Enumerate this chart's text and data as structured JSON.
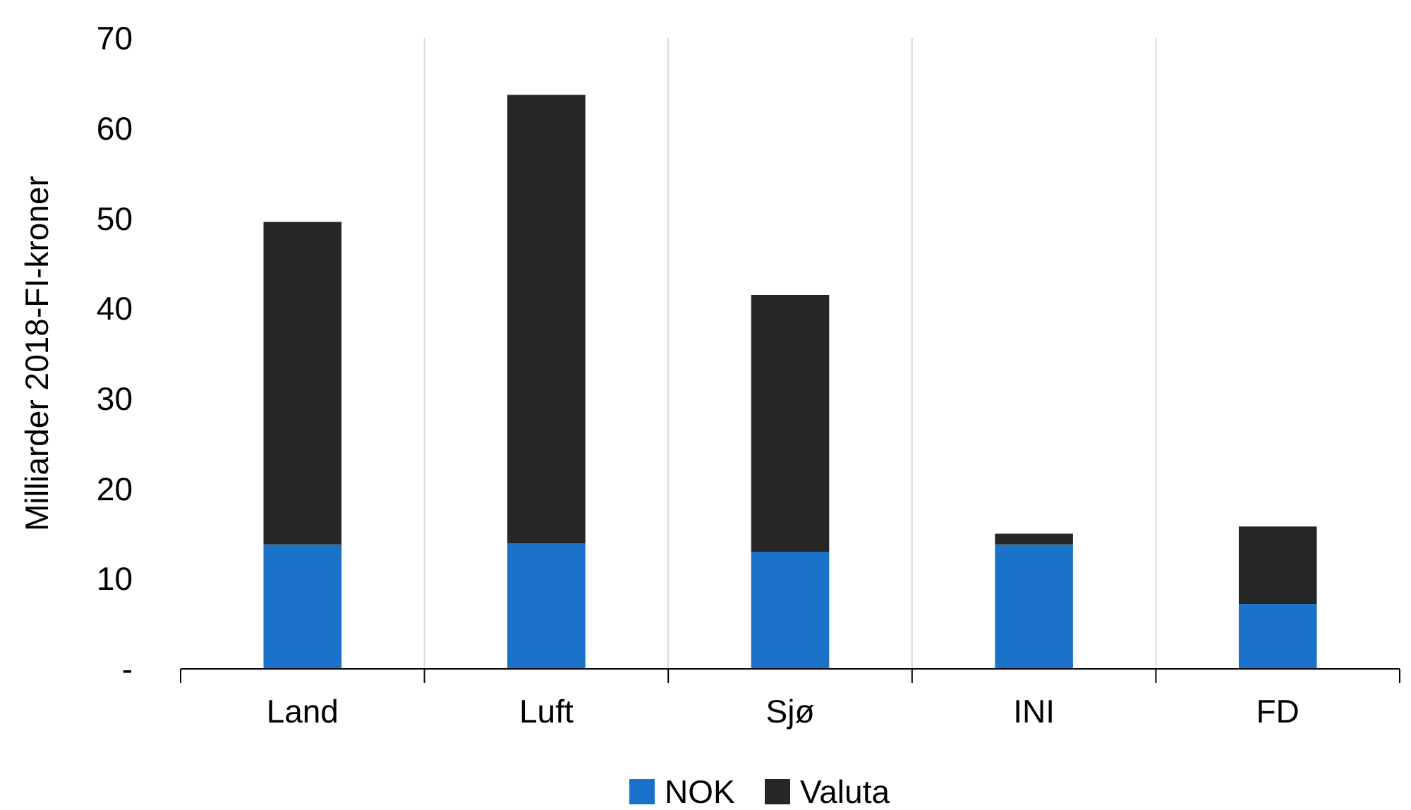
{
  "chart_data": {
    "type": "bar",
    "stacked": true,
    "ylabel": "Milliarder 2018-FI-kroner",
    "categories": [
      "Land",
      "Luft",
      "Sjø",
      "INI",
      "FD"
    ],
    "series": [
      {
        "name": "NOK",
        "color": "#1a73c8",
        "values": [
          13.8,
          13.9,
          13.0,
          13.8,
          7.2
        ]
      },
      {
        "name": "Valuta",
        "color": "#262626",
        "values": [
          35.8,
          49.8,
          28.5,
          1.2,
          8.6
        ]
      }
    ],
    "ylim": [
      0,
      70
    ],
    "yticks": [
      {
        "value": 0,
        "label": "-"
      },
      10,
      20,
      30,
      40,
      50,
      60,
      70
    ],
    "grid": "x",
    "legend": "bottom"
  }
}
